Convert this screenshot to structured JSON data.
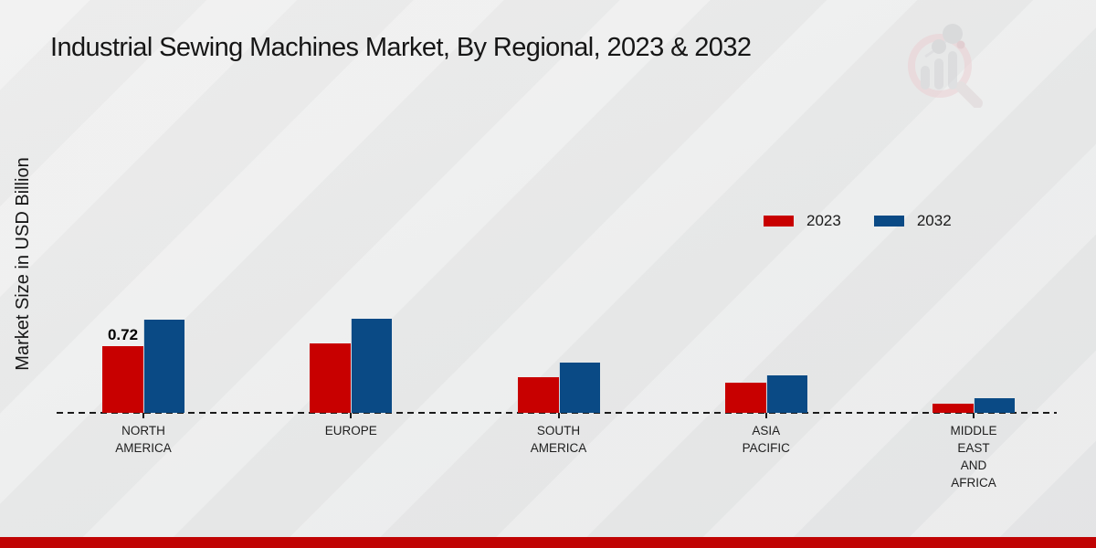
{
  "page": {
    "title": "Industrial Sewing Machines Market, By Regional, 2023 & 2032",
    "ylabel": "Market Size in USD Billion"
  },
  "legend": {
    "items": [
      {
        "label": "2023",
        "color": "#c80000"
      },
      {
        "label": "2032",
        "color": "#0a4a85"
      }
    ]
  },
  "chart_data": {
    "type": "bar",
    "title": "Industrial Sewing Machines Market, By Regional, 2023 & 2032",
    "ylabel": "Market Size in USD Billion",
    "xlabel": "",
    "categories": [
      "NORTH AMERICA",
      "EUROPE",
      "SOUTH AMERICA",
      "ASIA PACIFIC",
      "MIDDLE EAST AND AFRICA"
    ],
    "category_label_lines": [
      [
        "NORTH",
        "AMERICA"
      ],
      [
        "EUROPE"
      ],
      [
        "SOUTH",
        "AMERICA"
      ],
      [
        "ASIA",
        "PACIFIC"
      ],
      [
        "MIDDLE",
        "EAST",
        "AND",
        "AFRICA"
      ]
    ],
    "series": [
      {
        "name": "2023",
        "color": "#c80000",
        "values": [
          0.72,
          0.75,
          0.39,
          0.33,
          0.1
        ]
      },
      {
        "name": "2032",
        "color": "#0a4a85",
        "values": [
          1.01,
          1.02,
          0.54,
          0.41,
          0.16
        ]
      }
    ],
    "annotations": [
      {
        "series": "2023",
        "category_index": 0,
        "text": "0.72"
      }
    ],
    "axis": {
      "baseline_style": "dashed",
      "grid": false,
      "y_axis_labels_shown": false
    },
    "legend_position": "upper-right",
    "unit": "USD Billion"
  },
  "branding": {
    "logo_name": "market-research-future-watermark",
    "footer_bar_color": "#c00404"
  }
}
